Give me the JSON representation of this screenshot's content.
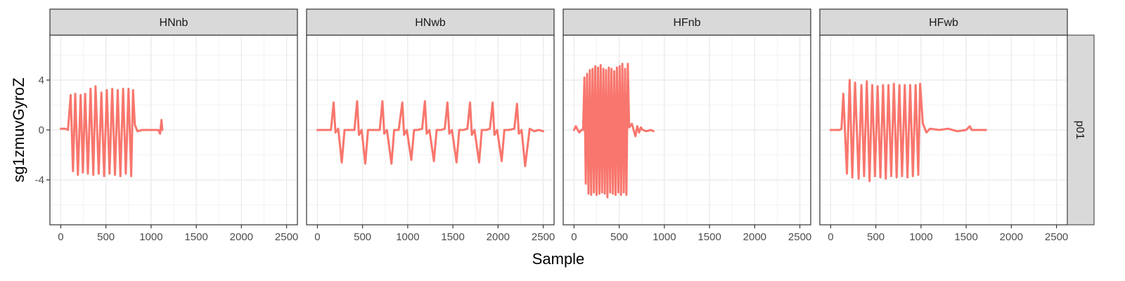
{
  "chart_data": {
    "type": "line",
    "xlabel": "Sample",
    "ylabel": "sg1zmuvGyroZ",
    "xlim": [
      -120,
      2620
    ],
    "ylim": [
      -7.6,
      7.6
    ],
    "x_ticks": [
      0,
      500,
      1000,
      1500,
      2000,
      2500
    ],
    "x_tick_labels": [
      "0",
      "500",
      "1000",
      "1500",
      "2000",
      "2500"
    ],
    "y_ticks": [
      4,
      0,
      -4
    ],
    "y_tick_labels": [
      "4",
      "0",
      "-4"
    ],
    "grid": true,
    "row_strip": "p01",
    "series_color": "#F8766D",
    "panels": [
      {
        "strip": "HNnb",
        "description": "10 oscillation cycles ~±3.2 between samples 100-800, flat ~0 until 1100 with spike 0.8",
        "x": [
          0,
          50,
          80,
          110,
          135,
          160,
          190,
          220,
          245,
          270,
          300,
          330,
          360,
          385,
          420,
          450,
          480,
          510,
          540,
          570,
          600,
          630,
          660,
          690,
          720,
          750,
          780,
          800,
          820,
          850,
          900,
          1000,
          1080,
          1100,
          1115,
          1125
        ],
        "y": [
          0.1,
          0.1,
          0.0,
          2.8,
          -3.3,
          2.9,
          -3.6,
          2.8,
          -3.4,
          2.9,
          -3.5,
          3.3,
          -3.6,
          3.5,
          -3.5,
          3.0,
          -3.7,
          3.2,
          -3.5,
          3.3,
          -3.6,
          3.2,
          -3.7,
          3.3,
          -3.5,
          3.3,
          -3.7,
          3.2,
          0.4,
          -0.1,
          0.0,
          0.0,
          0.0,
          -0.3,
          0.8,
          0.0
        ]
      },
      {
        "strip": "HNwb",
        "description": "9 pulse pairs peaking ~2.2 and dipping ~-2.7, every ~250 samples across 0-2500",
        "x": [
          0,
          150,
          180,
          200,
          230,
          270,
          300,
          350,
          410,
          440,
          460,
          490,
          530,
          560,
          620,
          690,
          720,
          740,
          770,
          820,
          850,
          900,
          940,
          960,
          990,
          1040,
          1070,
          1110,
          1160,
          1190,
          1210,
          1240,
          1290,
          1320,
          1370,
          1410,
          1440,
          1460,
          1490,
          1540,
          1570,
          1620,
          1660,
          1690,
          1710,
          1740,
          1790,
          1820,
          1870,
          1910,
          1940,
          1960,
          1990,
          2040,
          2070,
          2120,
          2180,
          2210,
          2230,
          2260,
          2300,
          2350,
          2400,
          2450,
          2500
        ],
        "y": [
          0.0,
          0.0,
          2.2,
          -0.2,
          0.1,
          -2.6,
          0.0,
          0.0,
          0.0,
          2.3,
          -0.4,
          0.0,
          -2.7,
          0.0,
          0.0,
          0.0,
          2.3,
          -0.3,
          0.0,
          -2.7,
          0.0,
          0.0,
          2.2,
          -0.4,
          0.0,
          -2.4,
          0.0,
          0.0,
          0.1,
          2.3,
          -0.3,
          0.0,
          -2.5,
          0.0,
          0.0,
          0.1,
          2.2,
          -0.3,
          0.0,
          -2.6,
          0.0,
          0.0,
          0.1,
          2.2,
          -0.4,
          0.0,
          -2.6,
          0.0,
          0.0,
          0.1,
          2.2,
          -0.4,
          0.0,
          -2.5,
          0.0,
          0.0,
          0.1,
          2.1,
          -0.3,
          0.0,
          -2.9,
          0.1,
          -0.1,
          0.0,
          -0.1
        ]
      },
      {
        "strip": "HFnb",
        "description": "dense high-frequency oscillation ~±5 between samples 100-600, decaying to 0 by ~900",
        "x": [
          0,
          20,
          40,
          60,
          80,
          100,
          115,
          130,
          145,
          160,
          175,
          190,
          205,
          220,
          235,
          250,
          265,
          280,
          295,
          310,
          325,
          340,
          355,
          370,
          385,
          400,
          415,
          430,
          445,
          460,
          475,
          490,
          505,
          520,
          535,
          550,
          565,
          580,
          595,
          610,
          640,
          680,
          700,
          720,
          740,
          760,
          800,
          850,
          880
        ],
        "y": [
          0.0,
          0.3,
          0.0,
          -0.2,
          0.0,
          0.0,
          4.2,
          -4.3,
          4.5,
          -5.1,
          4.8,
          -5.2,
          4.9,
          -5.0,
          5.1,
          -5.2,
          5.0,
          -5.1,
          5.2,
          -5.0,
          4.9,
          -5.1,
          4.8,
          -5.4,
          5.0,
          -5.0,
          4.9,
          -5.1,
          4.7,
          -5.2,
          5.0,
          -5.0,
          5.1,
          -5.2,
          5.3,
          -5.0,
          4.9,
          -5.2,
          5.3,
          0.2,
          0.5,
          -0.5,
          0.3,
          -0.2,
          0.2,
          0.0,
          -0.1,
          0.0,
          -0.1
        ]
      },
      {
        "strip": "HFwb",
        "description": "10 oscillation cycles ~±4 between samples 100-1000, then flat noise near 0 until ~1720",
        "x": [
          0,
          100,
          120,
          140,
          180,
          210,
          240,
          270,
          310,
          340,
          370,
          400,
          430,
          460,
          490,
          520,
          550,
          580,
          610,
          640,
          670,
          700,
          730,
          760,
          790,
          820,
          850,
          880,
          910,
          940,
          970,
          990,
          1020,
          1060,
          1100,
          1200,
          1300,
          1400,
          1500,
          1540,
          1560,
          1600,
          1650,
          1720
        ],
        "y": [
          0.0,
          0.0,
          0.1,
          2.9,
          -3.5,
          4.0,
          -3.8,
          3.8,
          -3.9,
          3.6,
          -3.7,
          3.9,
          -4.1,
          3.6,
          -3.7,
          3.5,
          -3.8,
          3.6,
          -3.9,
          3.6,
          -3.7,
          3.7,
          -3.8,
          3.6,
          -3.7,
          3.6,
          -3.8,
          3.6,
          -3.7,
          3.6,
          -3.6,
          3.7,
          0.5,
          -0.2,
          0.1,
          0.0,
          0.1,
          -0.1,
          0.0,
          0.3,
          0.0,
          0.0,
          0.0,
          0.0
        ]
      }
    ]
  }
}
